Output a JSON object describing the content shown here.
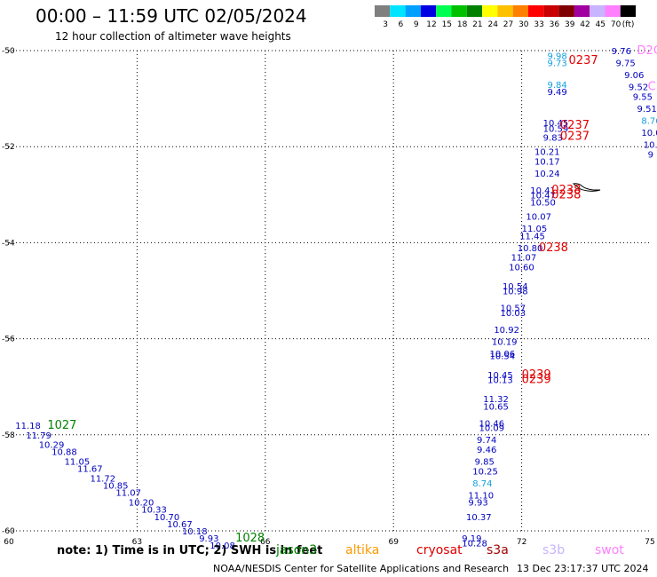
{
  "header": {
    "title": "00:00 – 11:59 UTC 02/05/2024",
    "subtitle": "12 hour collection of altimeter wave heights"
  },
  "legend": {
    "unit": "(ft)",
    "bins": [
      {
        "label": "3",
        "color": "#7f7f7f"
      },
      {
        "label": "6",
        "color": "#00e5ff"
      },
      {
        "label": "9",
        "color": "#00a0ff"
      },
      {
        "label": "12",
        "color": "#0000e0"
      },
      {
        "label": "15",
        "color": "#00ff50"
      },
      {
        "label": "18",
        "color": "#00c000"
      },
      {
        "label": "21",
        "color": "#008000"
      },
      {
        "label": "24",
        "color": "#ffff00"
      },
      {
        "label": "27",
        "color": "#ffc000"
      },
      {
        "label": "30",
        "color": "#ff8000"
      },
      {
        "label": "33",
        "color": "#ff0000"
      },
      {
        "label": "36",
        "color": "#c80000"
      },
      {
        "label": "39",
        "color": "#800000"
      },
      {
        "label": "42",
        "color": "#a000a0"
      },
      {
        "label": "45",
        "color": "#c8b4ff"
      },
      {
        "label": "70",
        "color": "#ff80ff"
      },
      {
        "label": "",
        "color": "#000000"
      }
    ]
  },
  "map": {
    "x_ticks": [
      "60",
      "63",
      "66",
      "69",
      "72",
      "75"
    ],
    "y_ticks": [
      "-50",
      "-52",
      "-54",
      "-56",
      "-58",
      "-60"
    ],
    "colors": {
      "blue": "#0000c0",
      "cyan": "#10a0e0",
      "red": "#e00000",
      "green": "#008000",
      "pink": "#ff80ff",
      "grid": "#000000"
    },
    "labels": [
      {
        "text": "9.76",
        "lon": 74.1,
        "lat": -50.0,
        "color": "blue"
      },
      {
        "text": "D2C",
        "lon": 74.7,
        "lat": -50.0,
        "color": "pink"
      },
      {
        "text": "9.75",
        "lon": 74.2,
        "lat": -50.25,
        "color": "blue"
      },
      {
        "text": "9.06",
        "lon": 74.4,
        "lat": -50.5,
        "color": "blue"
      },
      {
        "text": "9.52",
        "lon": 74.5,
        "lat": -50.75,
        "color": "blue"
      },
      {
        "text": "C",
        "lon": 74.95,
        "lat": -50.75,
        "color": "pink"
      },
      {
        "text": "9.55",
        "lon": 74.6,
        "lat": -50.95,
        "color": "blue"
      },
      {
        "text": "9.51",
        "lon": 74.7,
        "lat": -51.2,
        "color": "blue"
      },
      {
        "text": "8.76",
        "lon": 74.8,
        "lat": -51.45,
        "color": "cyan"
      },
      {
        "text": "10.0",
        "lon": 74.8,
        "lat": -51.7,
        "color": "blue"
      },
      {
        "text": "10.",
        "lon": 74.85,
        "lat": -51.95,
        "color": "blue"
      },
      {
        "text": "9",
        "lon": 74.95,
        "lat": -52.15,
        "color": "blue"
      },
      {
        "text": "9.98",
        "lon": 72.6,
        "lat": -50.1,
        "color": "cyan"
      },
      {
        "text": "9.73",
        "lon": 72.6,
        "lat": -50.25,
        "color": "cyan"
      },
      {
        "text": "0237",
        "lon": 73.1,
        "lat": -50.2,
        "color": "red"
      },
      {
        "text": "9.84",
        "lon": 72.6,
        "lat": -50.7,
        "color": "cyan"
      },
      {
        "text": "9.49",
        "lon": 72.6,
        "lat": -50.85,
        "color": "blue"
      },
      {
        "text": "10.45",
        "lon": 72.5,
        "lat": -51.5,
        "color": "blue"
      },
      {
        "text": "10.59",
        "lon": 72.5,
        "lat": -51.62,
        "color": "blue"
      },
      {
        "text": "0237",
        "lon": 72.9,
        "lat": -51.55,
        "color": "red"
      },
      {
        "text": "9.83",
        "lon": 72.5,
        "lat": -51.8,
        "color": "blue"
      },
      {
        "text": "0237",
        "lon": 72.9,
        "lat": -51.78,
        "color": "red"
      },
      {
        "text": "10.21",
        "lon": 72.3,
        "lat": -52.1,
        "color": "blue"
      },
      {
        "text": "10.17",
        "lon": 72.3,
        "lat": -52.3,
        "color": "blue"
      },
      {
        "text": "10.24",
        "lon": 72.3,
        "lat": -52.55,
        "color": "blue"
      },
      {
        "text": "10.41",
        "lon": 72.2,
        "lat": -52.9,
        "color": "blue"
      },
      {
        "text": "10.47",
        "lon": 72.2,
        "lat": -53.0,
        "color": "blue"
      },
      {
        "text": "0238",
        "lon": 72.7,
        "lat": -52.9,
        "color": "red"
      },
      {
        "text": "0238",
        "lon": 72.7,
        "lat": -53.0,
        "color": "red"
      },
      {
        "text": "10.50",
        "lon": 72.2,
        "lat": -53.15,
        "color": "blue"
      },
      {
        "text": "10.07",
        "lon": 72.1,
        "lat": -53.45,
        "color": "blue"
      },
      {
        "text": "11.05",
        "lon": 72.0,
        "lat": -53.7,
        "color": "blue"
      },
      {
        "text": "11.45",
        "lon": 71.95,
        "lat": -53.85,
        "color": "blue"
      },
      {
        "text": "10.80",
        "lon": 71.9,
        "lat": -54.1,
        "color": "blue"
      },
      {
        "text": "0238",
        "lon": 72.4,
        "lat": -54.1,
        "color": "red"
      },
      {
        "text": "11.07",
        "lon": 71.75,
        "lat": -54.3,
        "color": "blue"
      },
      {
        "text": "10.60",
        "lon": 71.7,
        "lat": -54.5,
        "color": "blue"
      },
      {
        "text": "10.54",
        "lon": 71.55,
        "lat": -54.9,
        "color": "blue"
      },
      {
        "text": "10.98",
        "lon": 71.55,
        "lat": -55.0,
        "color": "blue"
      },
      {
        "text": "10.57",
        "lon": 71.5,
        "lat": -55.35,
        "color": "blue"
      },
      {
        "text": "10.03",
        "lon": 71.5,
        "lat": -55.45,
        "color": "blue"
      },
      {
        "text": "10.92",
        "lon": 71.35,
        "lat": -55.8,
        "color": "blue"
      },
      {
        "text": "10.19",
        "lon": 71.3,
        "lat": -56.05,
        "color": "blue"
      },
      {
        "text": "10.06",
        "lon": 71.25,
        "lat": -56.3,
        "color": "blue"
      },
      {
        "text": "10.54",
        "lon": 71.25,
        "lat": -56.35,
        "color": "blue"
      },
      {
        "text": "10.45",
        "lon": 71.2,
        "lat": -56.75,
        "color": "blue"
      },
      {
        "text": "10.13",
        "lon": 71.2,
        "lat": -56.85,
        "color": "blue"
      },
      {
        "text": "0239",
        "lon": 72.0,
        "lat": -56.75,
        "color": "red"
      },
      {
        "text": "0239",
        "lon": 72.0,
        "lat": -56.85,
        "color": "red"
      },
      {
        "text": "11.32",
        "lon": 71.1,
        "lat": -57.25,
        "color": "blue"
      },
      {
        "text": "10.65",
        "lon": 71.1,
        "lat": -57.4,
        "color": "blue"
      },
      {
        "text": "10.46",
        "lon": 71.0,
        "lat": -57.75,
        "color": "blue"
      },
      {
        "text": "10.09",
        "lon": 71.0,
        "lat": -57.85,
        "color": "blue"
      },
      {
        "text": "9.74",
        "lon": 70.95,
        "lat": -58.1,
        "color": "blue"
      },
      {
        "text": "9.46",
        "lon": 70.95,
        "lat": -58.3,
        "color": "blue"
      },
      {
        "text": "9.85",
        "lon": 70.9,
        "lat": -58.55,
        "color": "blue"
      },
      {
        "text": "10.25",
        "lon": 70.85,
        "lat": -58.75,
        "color": "blue"
      },
      {
        "text": "8.74",
        "lon": 70.85,
        "lat": -59.0,
        "color": "cyan"
      },
      {
        "text": "11.10",
        "lon": 70.75,
        "lat": -59.25,
        "color": "blue"
      },
      {
        "text": "9.93",
        "lon": 70.75,
        "lat": -59.4,
        "color": "blue"
      },
      {
        "text": "10.37",
        "lon": 70.7,
        "lat": -59.7,
        "color": "blue"
      },
      {
        "text": "9.19",
        "lon": 70.6,
        "lat": -60.15,
        "color": "blue"
      },
      {
        "text": "10.28",
        "lon": 70.6,
        "lat": -60.25,
        "color": "blue"
      },
      {
        "text": "11.18",
        "lon": 60.15,
        "lat": -57.8,
        "color": "blue"
      },
      {
        "text": "1027",
        "lon": 60.9,
        "lat": -57.8,
        "color": "green"
      },
      {
        "text": "11.79",
        "lon": 60.4,
        "lat": -58.0,
        "color": "blue"
      },
      {
        "text": "10.29",
        "lon": 60.7,
        "lat": -58.2,
        "color": "blue"
      },
      {
        "text": "10.88",
        "lon": 61.0,
        "lat": -58.35,
        "color": "blue"
      },
      {
        "text": "11.05",
        "lon": 61.3,
        "lat": -58.55,
        "color": "blue"
      },
      {
        "text": "11.67",
        "lon": 61.6,
        "lat": -58.7,
        "color": "blue"
      },
      {
        "text": "11.72",
        "lon": 61.9,
        "lat": -58.9,
        "color": "blue"
      },
      {
        "text": "10.85",
        "lon": 62.2,
        "lat": -59.05,
        "color": "blue"
      },
      {
        "text": "11.07",
        "lon": 62.5,
        "lat": -59.2,
        "color": "blue"
      },
      {
        "text": "10.20",
        "lon": 62.8,
        "lat": -59.4,
        "color": "blue"
      },
      {
        "text": "10.33",
        "lon": 63.1,
        "lat": -59.55,
        "color": "blue"
      },
      {
        "text": "10.70",
        "lon": 63.4,
        "lat": -59.7,
        "color": "blue"
      },
      {
        "text": "10.67",
        "lon": 63.7,
        "lat": -59.85,
        "color": "blue"
      },
      {
        "text": "10.18",
        "lon": 64.05,
        "lat": -60.0,
        "color": "blue"
      },
      {
        "text": "9.93",
        "lon": 64.45,
        "lat": -60.15,
        "color": "blue"
      },
      {
        "text": "1028",
        "lon": 65.3,
        "lat": -60.15,
        "color": "green"
      },
      {
        "text": "10.08",
        "lon": 64.7,
        "lat": -60.3,
        "color": "blue"
      }
    ]
  },
  "footer": {
    "note": "note:  1) Time is in UTC; 2) SWH is in feet",
    "satellites": [
      {
        "name": "jason3",
        "color": "#008000"
      },
      {
        "name": "altika",
        "color": "#ff9900"
      },
      {
        "name": "cryosat",
        "color": "#e00000"
      },
      {
        "name": "s3a",
        "color": "#a00000"
      },
      {
        "name": "s3b",
        "color": "#c8b4ff"
      },
      {
        "name": "swot",
        "color": "#ff80ff"
      }
    ],
    "credit": "NOAA/NESDIS Center for Satellite Applications and Research",
    "timestamp": "13 Dec 23:17:37 UTC 2024"
  }
}
